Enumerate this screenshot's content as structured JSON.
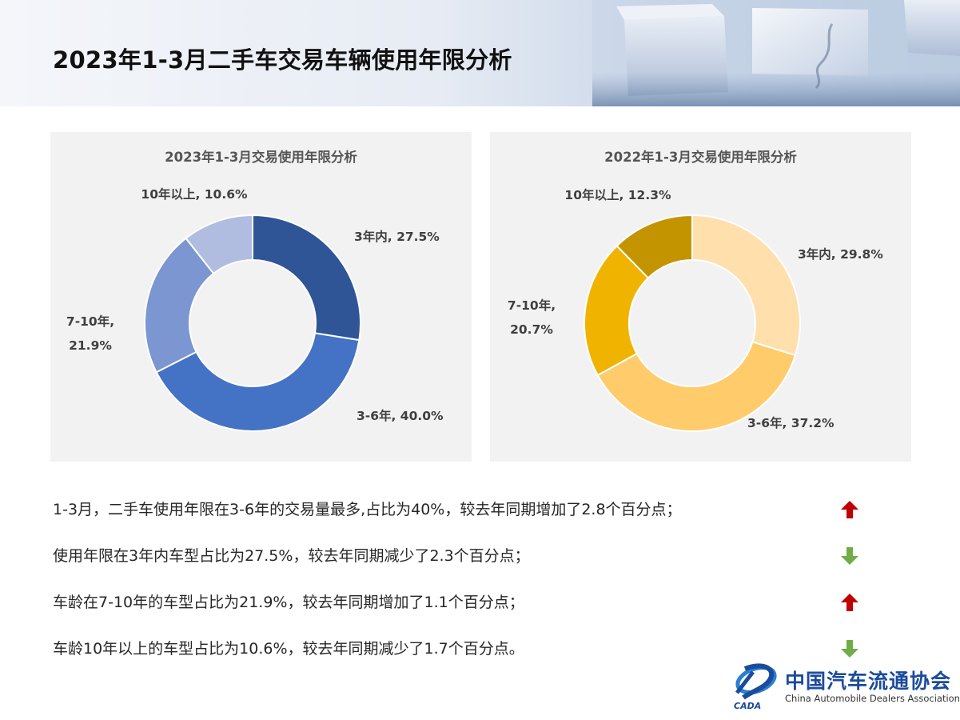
{
  "page": {
    "title": "2023年1-3月二手车交易车辆使用年限分析"
  },
  "chart_data": [
    {
      "type": "pie",
      "variant": "donut",
      "title": "2023年1-3月交易使用年限分析",
      "categories": [
        "3年内",
        "3-6年",
        "7-10年",
        "10年以上"
      ],
      "values": [
        27.5,
        40.0,
        21.9,
        10.6
      ],
      "data_labels": [
        "3年内, 27.5%",
        "3-6年, 40.0%",
        "7-10年,\n21.9%",
        "10年以上, 10.6%"
      ],
      "colors": [
        "#2f5597",
        "#4472c4",
        "#7b96d0",
        "#b0bde0"
      ],
      "legend": "none"
    },
    {
      "type": "pie",
      "variant": "donut",
      "title": "2022年1-3月交易使用年限分析",
      "categories": [
        "3年内",
        "3-6年",
        "7-10年",
        "10年以上"
      ],
      "values": [
        29.8,
        37.2,
        20.7,
        12.3
      ],
      "data_labels": [
        "3年内, 29.8%",
        "3-6年, 37.2%",
        "7-10年,\n20.7%",
        "10年以上, 12.3%"
      ],
      "colors": [
        "#ffe0ad",
        "#ffcb6b",
        "#f0b400",
        "#c49400"
      ],
      "legend": "none"
    }
  ],
  "notes": [
    {
      "text": "1-3月，二手车使用年限在3-6年的交易量最多,占比为40%，较去年同期增加了2.8个百分点；",
      "trend": "up",
      "icon": "red-up-arrow-icon"
    },
    {
      "text": "使用年限在3年内车型占比为27.5%，较去年同期减少了2.3个百分点；",
      "trend": "down",
      "icon": "green-down-arrow-icon"
    },
    {
      "text": "车龄在7-10年的车型占比为21.9%，较去年同期增加了1.1个百分点；",
      "trend": "up",
      "icon": "red-up-arrow-icon"
    },
    {
      "text": "车龄10年以上的车型占比为10.6%，较去年同期减少了1.7个百分点。",
      "trend": "down",
      "icon": "green-down-arrow-icon"
    }
  ],
  "colors": {
    "up": "#c00000",
    "down": "#70ad47",
    "brand": "#1b4b9c"
  },
  "logo": {
    "name": "中国汽车流通协会",
    "name_en": "China Automobile Dealers Association",
    "mark_text": "CADA"
  }
}
